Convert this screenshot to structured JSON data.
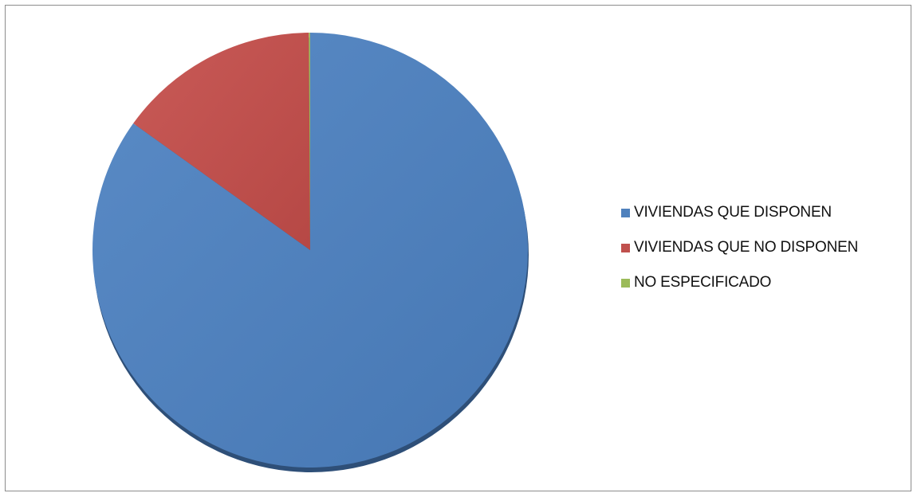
{
  "chart_data": {
    "type": "pie",
    "title": "",
    "categories": [
      "VIVIENDAS QUE DISPONEN",
      "VIVIENDAS QUE NO DISPONEN",
      "NO ESPECIFICADO"
    ],
    "values": [
      84.9,
      15.0,
      0.1
    ],
    "colors": [
      "#4F81BD",
      "#C0504D",
      "#9BBB59"
    ],
    "start_angle": "12 o'clock",
    "direction": "clockwise",
    "legend_position": "right"
  },
  "legend": {
    "items": [
      {
        "label": "VIVIENDAS QUE DISPONEN",
        "color": "#4F81BD"
      },
      {
        "label": "VIVIENDAS QUE NO DISPONEN",
        "color": "#C0504D"
      },
      {
        "label": "NO ESPECIFICADO",
        "color": "#9BBB59"
      }
    ]
  }
}
